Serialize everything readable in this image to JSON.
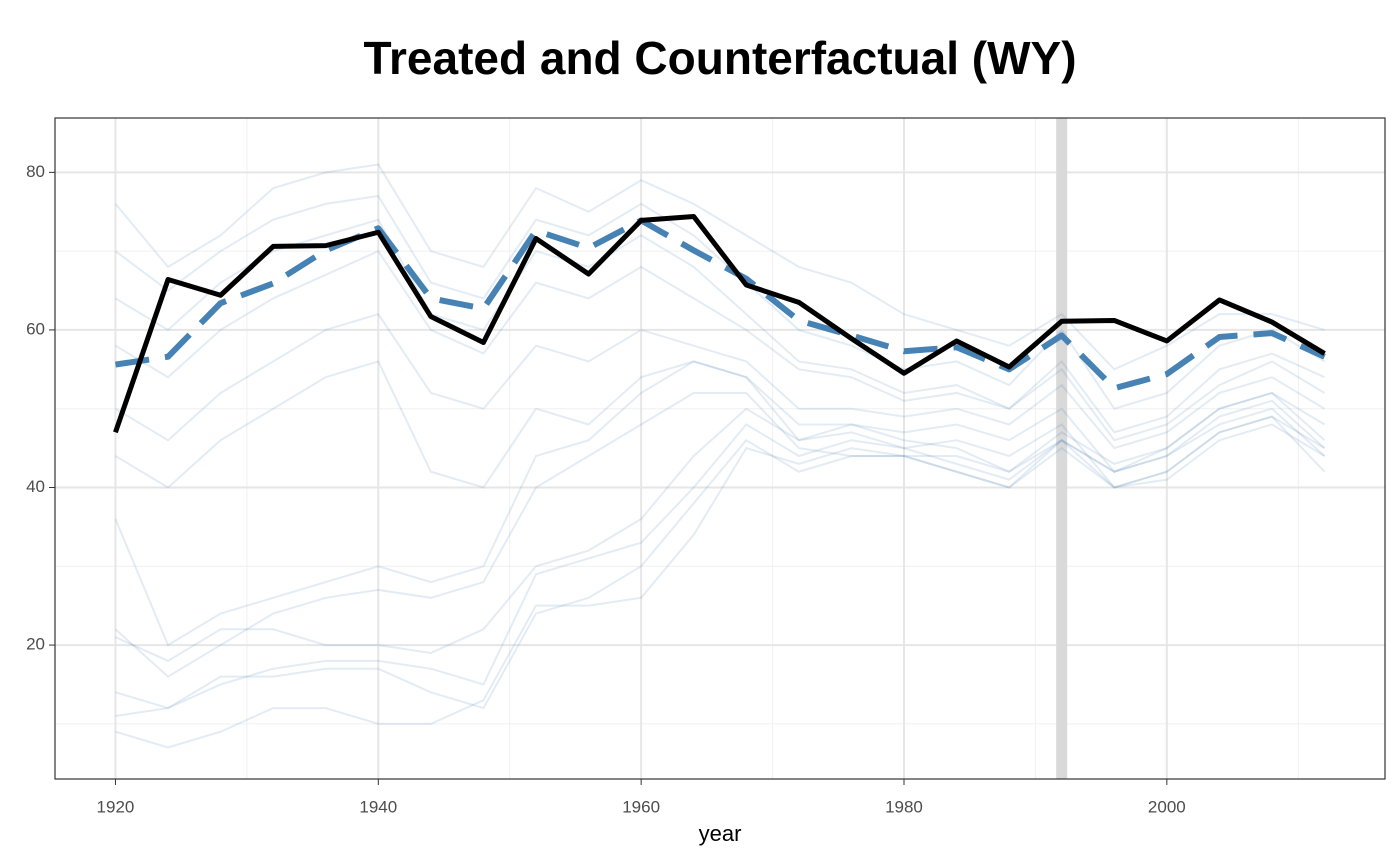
{
  "chart_data": {
    "type": "line",
    "title": "Treated and Counterfactual (WY)",
    "x_label": "year",
    "x": [
      1920,
      1924,
      1928,
      1932,
      1936,
      1940,
      1944,
      1948,
      1952,
      1956,
      1960,
      1964,
      1968,
      1972,
      1976,
      1980,
      1984,
      1988,
      1992,
      1996,
      2000,
      2004,
      2008,
      2012
    ],
    "xlim": [
      1915.4,
      2016.6
    ],
    "ylim": [
      3.0,
      86.9
    ],
    "xticks": [
      1920,
      1940,
      1960,
      1980,
      2000
    ],
    "yticks": [
      20,
      40,
      60,
      80
    ],
    "xminorticks": [
      1930,
      1950,
      1970,
      1990,
      2010
    ],
    "yminorticks": [
      10,
      30,
      50,
      70
    ],
    "grid": true,
    "treatment_year": 1992,
    "treatment_color": "#d9d9d9",
    "background_color": "#4682b4",
    "background_series": [
      [
        76,
        68,
        72,
        78,
        80,
        81,
        70,
        68,
        78,
        75,
        79,
        76,
        72,
        68,
        66,
        62,
        60,
        58,
        62,
        55,
        58,
        62,
        62,
        60
      ],
      [
        70,
        65,
        70,
        74,
        76,
        77,
        66,
        64,
        74,
        72,
        76,
        72,
        66,
        60,
        58,
        55,
        56,
        53,
        60,
        50,
        52,
        58,
        60,
        56
      ],
      [
        64,
        60,
        66,
        70,
        72,
        74,
        62,
        60,
        70,
        68,
        72,
        68,
        62,
        56,
        55,
        52,
        53,
        50,
        56,
        47,
        49,
        55,
        57,
        54
      ],
      [
        58,
        54,
        60,
        64,
        67,
        70,
        60,
        57,
        66,
        64,
        68,
        64,
        60,
        55,
        54,
        51,
        52,
        50,
        55,
        46,
        48,
        53,
        56,
        52
      ],
      [
        50,
        46,
        52,
        56,
        60,
        62,
        52,
        50,
        58,
        56,
        60,
        58,
        56,
        50,
        50,
        49,
        50,
        48,
        53,
        45,
        47,
        52,
        54,
        50
      ],
      [
        44,
        40,
        46,
        50,
        54,
        56,
        42,
        40,
        50,
        48,
        54,
        56,
        54,
        48,
        48,
        47,
        48,
        46,
        50,
        42,
        45,
        50,
        52,
        48
      ],
      [
        36,
        20,
        24,
        26,
        28,
        30,
        28,
        30,
        44,
        46,
        52,
        56,
        54,
        46,
        47,
        45,
        46,
        44,
        48,
        40,
        42,
        47,
        49,
        45
      ],
      [
        22,
        16,
        20,
        24,
        26,
        27,
        26,
        28,
        40,
        44,
        48,
        52,
        52,
        45,
        44,
        44,
        44,
        42,
        46,
        40,
        41,
        46,
        48,
        44
      ],
      [
        21,
        18,
        22,
        22,
        20,
        20,
        19,
        22,
        30,
        32,
        36,
        44,
        50,
        46,
        48,
        46,
        45,
        42,
        47,
        43,
        45,
        50,
        52,
        46
      ],
      [
        14,
        12,
        15,
        17,
        18,
        18,
        17,
        15,
        29,
        31,
        33,
        40,
        48,
        44,
        46,
        45,
        43,
        41,
        46,
        42,
        44,
        49,
        51,
        45
      ],
      [
        11,
        12,
        16,
        16,
        17,
        17,
        14,
        12,
        24,
        26,
        30,
        38,
        46,
        42,
        44,
        44,
        42,
        40,
        46,
        42,
        44,
        48,
        50,
        44
      ],
      [
        9,
        7,
        9,
        12,
        12,
        10,
        10,
        13,
        25,
        25,
        26,
        34,
        45,
        43,
        45,
        44,
        42,
        40,
        45,
        40,
        42,
        47,
        49,
        42
      ]
    ],
    "series": [
      {
        "color": "#4682b4",
        "dashed": true,
        "values": [
          55.6,
          56.6,
          63.4,
          65.9,
          70.1,
          72.9,
          64.0,
          62.7,
          72.6,
          70.4,
          73.9,
          70.1,
          66.5,
          61.2,
          59.3,
          57.3,
          57.8,
          55.0,
          59.3,
          52.6,
          54.4,
          59.1,
          59.6,
          56.6
        ]
      },
      {
        "color": "#000000",
        "dashed": false,
        "values": [
          47.0,
          66.4,
          64.4,
          70.6,
          70.7,
          72.4,
          61.7,
          58.4,
          71.6,
          67.1,
          73.9,
          74.4,
          65.7,
          63.5,
          58.9,
          54.5,
          58.6,
          55.3,
          61.1,
          61.2,
          58.6,
          63.8,
          61.0,
          57.0
        ]
      }
    ]
  }
}
